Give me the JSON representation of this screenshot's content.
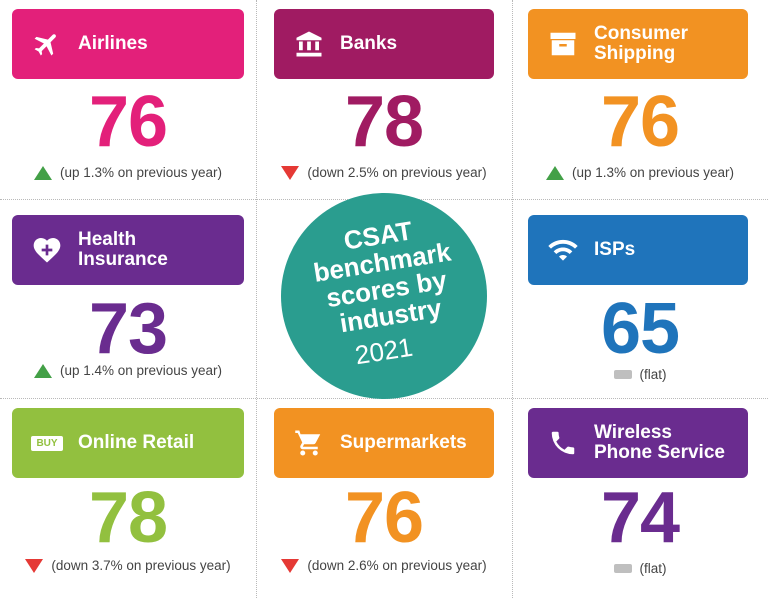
{
  "colors": {
    "pink": "#e3207a",
    "magenta": "#a01b62",
    "orange": "#f29222",
    "purple": "#6a2c8f",
    "blue": "#1f74bb",
    "green": "#92c03f",
    "teal": "#2a9d8f",
    "up": "#43a047",
    "down": "#e53935",
    "flat": "#bfbfbf"
  },
  "center": {
    "title": "CSAT\nbenchmark\nscores by\nindustry",
    "year": "2021"
  },
  "industries": [
    {
      "name": "Airlines",
      "icon": "airplane-icon",
      "score": "76",
      "trend": "up",
      "change": "(up 1.3% on previous year)"
    },
    {
      "name": "Banks",
      "icon": "bank-icon",
      "score": "78",
      "trend": "down",
      "change": "(down 2.5% on previous year)"
    },
    {
      "name": "Consumer\nShipping",
      "icon": "box-icon",
      "score": "76",
      "trend": "up",
      "change": "(up 1.3% on previous year)"
    },
    {
      "name": "Health\nInsurance",
      "icon": "heart-plus-icon",
      "score": "73",
      "trend": "up",
      "change": "(up 1.4% on previous year)"
    },
    {
      "name": "ISPs",
      "icon": "wifi-icon",
      "score": "65",
      "trend": "flat",
      "change": "(flat)"
    },
    {
      "name": "Online Retail",
      "icon": "buy-tag-icon",
      "icon_text": "BUY",
      "score": "78",
      "trend": "down",
      "change": "(down 3.7% on previous year)"
    },
    {
      "name": "Supermarkets",
      "icon": "cart-icon",
      "score": "76",
      "trend": "down",
      "change": "(down 2.6% on previous year)"
    },
    {
      "name": "Wireless\nPhone Service",
      "icon": "phone-icon",
      "score": "74",
      "trend": "flat",
      "change": "(flat)"
    }
  ]
}
